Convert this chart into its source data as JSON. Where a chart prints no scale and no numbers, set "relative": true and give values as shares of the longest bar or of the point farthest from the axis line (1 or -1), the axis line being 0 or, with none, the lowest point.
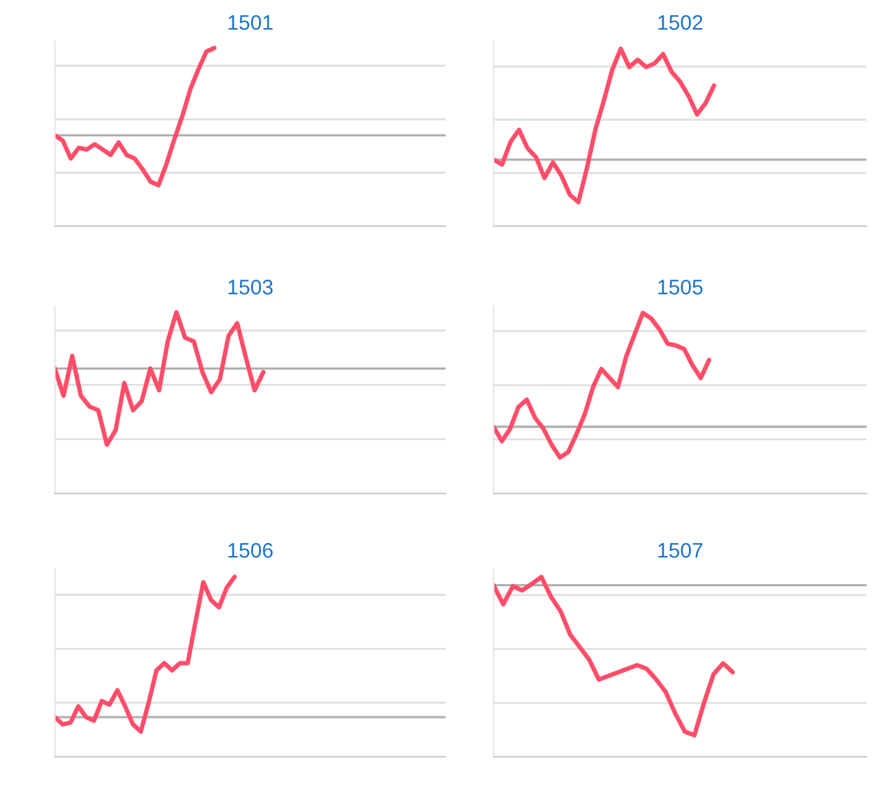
{
  "chart_data": [
    {
      "type": "line",
      "title": "1501",
      "relative": true,
      "grid": "y",
      "color": "#ff4d6a",
      "ref_lines": [
        {
          "axis": "y",
          "value": 0.51,
          "color": "#b0b0b0"
        }
      ],
      "categories": [
        null,
        null,
        null,
        null,
        null,
        null,
        null,
        null,
        null,
        null,
        null,
        null,
        null,
        null,
        null,
        null,
        null,
        null,
        null,
        null,
        null,
        null,
        null,
        null,
        null,
        null,
        null,
        null,
        null,
        null,
        null,
        null,
        null,
        null,
        null,
        null,
        null,
        null,
        null,
        null,
        null,
        null,
        null,
        null,
        null,
        null,
        null,
        null,
        null,
        null
      ],
      "values": [
        0.51,
        0.48,
        0.38,
        0.44,
        0.43,
        0.46,
        0.43,
        0.4,
        0.47,
        0.4,
        0.38,
        0.32,
        0.25,
        0.23,
        0.35,
        0.49,
        0.62,
        0.77,
        0.88,
        0.98,
        1.0,
        null,
        null,
        null,
        null,
        null,
        null,
        null,
        null,
        null,
        null,
        null,
        null,
        null,
        null,
        null,
        null,
        null,
        null,
        null,
        null,
        null,
        null,
        null,
        null,
        null,
        null,
        null,
        null,
        null
      ]
    },
    {
      "type": "line",
      "title": "1502",
      "relative": true,
      "grid": "y",
      "color": "#ff4d6a",
      "ref_lines": [
        {
          "axis": "y",
          "value": 0.375,
          "color": "#b0b0b0"
        }
      ],
      "categories": [
        null,
        null,
        null,
        null,
        null,
        null,
        null,
        null,
        null,
        null,
        null,
        null,
        null,
        null,
        null,
        null,
        null,
        null,
        null,
        null,
        null,
        null,
        null,
        null,
        null,
        null,
        null,
        null,
        null,
        null,
        null,
        null,
        null,
        null,
        null,
        null,
        null,
        null,
        null,
        null,
        null,
        null,
        null,
        null,
        null
      ],
      "values": [
        0.375,
        0.348,
        0.476,
        0.543,
        0.44,
        0.389,
        0.272,
        0.359,
        0.285,
        0.177,
        0.136,
        0.326,
        0.543,
        0.707,
        0.883,
        1.0,
        0.897,
        0.938,
        0.897,
        0.918,
        0.97,
        0.87,
        0.815,
        0.734,
        0.63,
        0.693,
        0.793,
        null,
        null,
        null,
        null,
        null,
        null,
        null,
        null,
        null,
        null,
        null,
        null,
        null,
        null,
        null,
        null,
        null,
        null
      ]
    },
    {
      "type": "line",
      "title": "1503",
      "relative": true,
      "grid": "y",
      "color": "#ff4d6a",
      "ref_lines": [
        {
          "axis": "y",
          "value": 0.69,
          "color": "#b0b0b0"
        }
      ],
      "categories": [
        null,
        null,
        null,
        null,
        null,
        null,
        null,
        null,
        null,
        null,
        null,
        null,
        null,
        null,
        null,
        null,
        null,
        null,
        null,
        null,
        null,
        null,
        null,
        null,
        null,
        null,
        null,
        null,
        null,
        null,
        null,
        null,
        null,
        null,
        null,
        null,
        null,
        null,
        null,
        null,
        null,
        null,
        null,
        null,
        null,
        null
      ],
      "values": [
        0.69,
        0.54,
        0.76,
        0.54,
        0.48,
        0.46,
        0.27,
        0.35,
        0.61,
        0.46,
        0.51,
        0.69,
        0.57,
        0.84,
        1.0,
        0.86,
        0.84,
        0.67,
        0.56,
        0.63,
        0.87,
        0.94,
        0.75,
        0.57,
        0.67,
        null,
        null,
        null,
        null,
        null,
        null,
        null,
        null,
        null,
        null,
        null,
        null,
        null,
        null,
        null,
        null,
        null,
        null,
        null,
        null,
        null
      ]
    },
    {
      "type": "line",
      "title": "1505",
      "relative": true,
      "grid": "y",
      "color": "#ff4d6a",
      "ref_lines": [
        {
          "axis": "y",
          "value": 0.37,
          "color": "#b0b0b0"
        }
      ],
      "categories": [
        null,
        null,
        null,
        null,
        null,
        null,
        null,
        null,
        null,
        null,
        null,
        null,
        null,
        null,
        null,
        null,
        null,
        null,
        null,
        null,
        null,
        null,
        null,
        null,
        null,
        null,
        null,
        null,
        null,
        null,
        null,
        null,
        null,
        null,
        null,
        null,
        null,
        null,
        null,
        null,
        null,
        null,
        null,
        null,
        null,
        null
      ],
      "values": [
        0.37,
        0.29,
        0.36,
        0.48,
        0.52,
        0.42,
        0.36,
        0.27,
        0.2,
        0.23,
        0.33,
        0.44,
        0.59,
        0.69,
        0.64,
        0.59,
        0.76,
        0.88,
        1.0,
        0.97,
        0.91,
        0.83,
        0.82,
        0.8,
        0.71,
        0.64,
        0.74,
        null,
        null,
        null,
        null,
        null,
        null,
        null,
        null,
        null,
        null,
        null,
        null,
        null,
        null,
        null,
        null,
        null,
        null,
        null
      ]
    },
    {
      "type": "line",
      "title": "1506",
      "relative": true,
      "grid": "y",
      "color": "#ff4d6a",
      "ref_lines": [
        {
          "axis": "y",
          "value": 0.22,
          "color": "#b0b0b0"
        }
      ],
      "categories": [
        null,
        null,
        null,
        null,
        null,
        null,
        null,
        null,
        null,
        null,
        null,
        null,
        null,
        null,
        null,
        null,
        null,
        null,
        null,
        null,
        null,
        null,
        null,
        null,
        null,
        null,
        null,
        null,
        null,
        null,
        null,
        null,
        null,
        null,
        null,
        null,
        null,
        null,
        null,
        null,
        null,
        null,
        null,
        null,
        null,
        null,
        null,
        null,
        null,
        null,
        null
      ],
      "values": [
        0.22,
        0.18,
        0.19,
        0.28,
        0.22,
        0.2,
        0.31,
        0.29,
        0.37,
        0.28,
        0.18,
        0.14,
        0.3,
        0.48,
        0.52,
        0.48,
        0.52,
        0.52,
        0.75,
        0.97,
        0.87,
        0.83,
        0.94,
        1.0,
        null,
        null,
        null,
        null,
        null,
        null,
        null,
        null,
        null,
        null,
        null,
        null,
        null,
        null,
        null,
        null,
        null,
        null,
        null,
        null,
        null,
        null,
        null,
        null,
        null,
        null,
        null
      ]
    },
    {
      "type": "line",
      "title": "1507",
      "relative": true,
      "grid": "y",
      "color": "#ff4d6a",
      "ref_lines": [
        {
          "axis": "y",
          "value": 0.954,
          "color": "#b0b0b0"
        }
      ],
      "categories": [
        null,
        null,
        null,
        null,
        null,
        null,
        null,
        null,
        null,
        null,
        null,
        null,
        null,
        null,
        null,
        null,
        null,
        null,
        null,
        null,
        null,
        null,
        null,
        null,
        null,
        null,
        null,
        null,
        null,
        null,
        null,
        null,
        null,
        null,
        null,
        null,
        null,
        null,
        null,
        null
      ],
      "values": [
        0.954,
        0.847,
        0.948,
        0.925,
        0.962,
        1.0,
        0.89,
        0.81,
        0.68,
        0.61,
        0.54,
        0.43,
        0.45,
        0.47,
        0.49,
        0.51,
        0.49,
        0.43,
        0.36,
        0.24,
        0.14,
        0.12,
        0.3,
        0.46,
        0.52,
        0.47,
        null,
        null,
        null,
        null,
        null,
        null,
        null,
        null,
        null,
        null,
        null,
        null,
        null,
        null
      ]
    }
  ]
}
